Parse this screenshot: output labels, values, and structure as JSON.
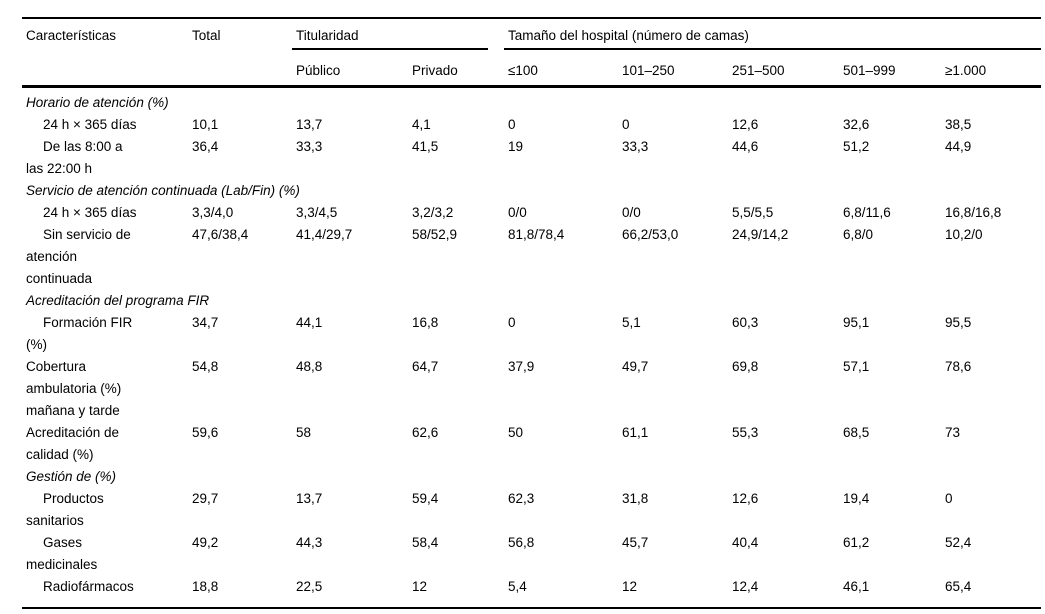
{
  "page": {
    "background_color": "#ffffff",
    "text_color": "#000000",
    "rule_color": "#000000"
  },
  "table": {
    "col_headers": {
      "caracteristicas": "Características",
      "total": "Total"
    },
    "col_groups": {
      "titularidad": "Titularidad",
      "tamano": "Tamaño del hospital (número de camas)"
    },
    "subheaders": [
      "Público",
      "Privado",
      "≤100",
      "101–250",
      "251–500",
      "501–999",
      "≥1.000"
    ],
    "rows": [
      {
        "type": "section",
        "label": "Horario de atención (%)"
      },
      {
        "type": "data",
        "indent": true,
        "label": "24 h × 365 días",
        "values": [
          "10,1",
          "13,7",
          "4,1",
          "0",
          "0",
          "12,6",
          "32,6",
          "38,5"
        ]
      },
      {
        "type": "data",
        "indent": true,
        "label": "De las 8:00 a\nlas 22:00 h",
        "values": [
          "36,4",
          "33,3",
          "41,5",
          "19",
          "33,3",
          "44,6",
          "51,2",
          "44,9"
        ]
      },
      {
        "type": "section",
        "label": "Servicio de atención continuada (Lab/Fin) (%)"
      },
      {
        "type": "data",
        "indent": true,
        "label": "24 h × 365 días",
        "values": [
          "3,3/4,0",
          "3,3/4,5",
          "3,2/3,2",
          "0/0",
          "0/0",
          "5,5/5,5",
          "6,8/11,6",
          "16,8/16,8"
        ]
      },
      {
        "type": "data",
        "indent": true,
        "label": "Sin servicio de\natención\ncontinuada",
        "values": [
          "47,6/38,4",
          "41,4/29,7",
          "58/52,9",
          "81,8/78,4",
          "66,2/53,0",
          "24,9/14,2",
          "6,8/0",
          "10,2/0"
        ]
      },
      {
        "type": "section",
        "label": "Acreditación del programa FIR"
      },
      {
        "type": "data",
        "indent": true,
        "label": "Formación FIR\n(%)",
        "values": [
          "34,7",
          "44,1",
          "16,8",
          "0",
          "5,1",
          "60,3",
          "95,1",
          "95,5"
        ]
      },
      {
        "type": "data",
        "indent": false,
        "label": "Cobertura\nambulatoria (%)\nmañana y tarde",
        "values": [
          "54,8",
          "48,8",
          "64,7",
          "37,9",
          "49,7",
          "69,8",
          "57,1",
          "78,6"
        ]
      },
      {
        "type": "data",
        "indent": false,
        "label": "Acreditación de\ncalidad (%)",
        "values": [
          "59,6",
          "58",
          "62,6",
          "50",
          "61,1",
          "55,3",
          "68,5",
          "73"
        ]
      },
      {
        "type": "section",
        "label": "Gestión de (%)"
      },
      {
        "type": "data",
        "indent": true,
        "label": "Productos\nsanitarios",
        "values": [
          "29,7",
          "13,7",
          "59,4",
          "62,3",
          "31,8",
          "12,6",
          "19,4",
          "0"
        ]
      },
      {
        "type": "data",
        "indent": true,
        "label": "Gases\nmedicinales",
        "values": [
          "49,2",
          "44,3",
          "58,4",
          "56,8",
          "45,7",
          "40,4",
          "61,2",
          "52,4"
        ]
      },
      {
        "type": "data",
        "indent": true,
        "label": "Radiofármacos",
        "values": [
          "18,8",
          "22,5",
          "12",
          "5,4",
          "12",
          "12,4",
          "46,1",
          "65,4"
        ]
      }
    ]
  }
}
